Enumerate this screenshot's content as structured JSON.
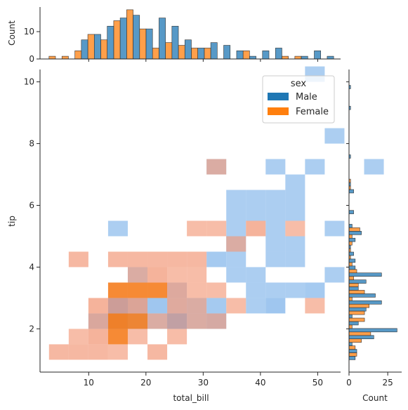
{
  "chart_data": {
    "type": "jointplot",
    "xlabel": "total_bill",
    "ylabel": "tip",
    "marg_x_ylabel": "Count",
    "marg_y_xlabel": "Count",
    "xlim": [
      1.5,
      54
    ],
    "ylim": [
      0.6,
      10.4
    ],
    "marg_x_ylim": [
      0,
      19
    ],
    "marg_y_xlim": [
      0,
      34
    ],
    "x_ticks": [
      10,
      20,
      30,
      40,
      50
    ],
    "y_ticks": [
      2,
      4,
      6,
      8,
      10
    ],
    "marg_x_ticks": [
      0,
      10
    ],
    "marg_y_ticks": [
      0,
      25
    ],
    "legend": {
      "title": "sex",
      "placement": "top-right",
      "entries": [
        "Male",
        "Female"
      ]
    },
    "colors": {
      "Male": "#1f77b4",
      "Female": "#ff7f0e",
      "Male_light": "#7fb3ea",
      "Female_light": "#f29a7a"
    },
    "joint": {
      "x_bin_start": 3.07,
      "x_bin_width": 3.44,
      "y_bin_start": 1.0,
      "y_bin_width": 0.5,
      "Male": [
        [
          2,
          2,
          0.6
        ],
        [
          3,
          2,
          0.8
        ],
        [
          4,
          2,
          0.6
        ],
        [
          5,
          2,
          0.4
        ],
        [
          6,
          2,
          0.8
        ],
        [
          7,
          2,
          0.4
        ],
        [
          8,
          2,
          0.6
        ],
        [
          3,
          3,
          0.9
        ],
        [
          4,
          3,
          0.7
        ],
        [
          5,
          3,
          0.6
        ],
        [
          6,
          3,
          0.3
        ],
        [
          7,
          3,
          0.4
        ],
        [
          8,
          3,
          0.5
        ],
        [
          10,
          3,
          0.4
        ],
        [
          11,
          3,
          0.6
        ],
        [
          6,
          4,
          0.4
        ],
        [
          10,
          4,
          0.4
        ],
        [
          11,
          4,
          0.4
        ],
        [
          12,
          4,
          0.4
        ],
        [
          13,
          4,
          0.5
        ],
        [
          4,
          5,
          0.4
        ],
        [
          9,
          5,
          0.4
        ],
        [
          10,
          5,
          0.4
        ],
        [
          14,
          5,
          0.4
        ],
        [
          8,
          6,
          0.5
        ],
        [
          9,
          6,
          0.4
        ],
        [
          11,
          6,
          0.4
        ],
        [
          12,
          6,
          0.4
        ],
        [
          9,
          7,
          0.4
        ],
        [
          11,
          7,
          0.4
        ],
        [
          12,
          7,
          0.4
        ],
        [
          3,
          8,
          0.4
        ],
        [
          9,
          8,
          0.4
        ],
        [
          11,
          8,
          0.4
        ],
        [
          14,
          8,
          0.4
        ],
        [
          9,
          9,
          0.4
        ],
        [
          10,
          9,
          0.4
        ],
        [
          11,
          9,
          0.4
        ],
        [
          12,
          9,
          0.4
        ],
        [
          9,
          10,
          0.4
        ],
        [
          10,
          10,
          0.4
        ],
        [
          11,
          10,
          0.4
        ],
        [
          12,
          10,
          0.4
        ],
        [
          12,
          11,
          0.4
        ],
        [
          8,
          12,
          0.4
        ],
        [
          11,
          12,
          0.4
        ],
        [
          13,
          12,
          0.4
        ],
        [
          16,
          12,
          0.4
        ],
        [
          14,
          14,
          0.4
        ],
        [
          13,
          18,
          0.4
        ]
      ],
      "Female": [
        [
          0,
          0,
          0.5
        ],
        [
          1,
          0,
          0.5
        ],
        [
          2,
          0,
          0.5
        ],
        [
          3,
          0,
          0.4
        ],
        [
          5,
          0,
          0.5
        ],
        [
          1,
          1,
          0.4
        ],
        [
          2,
          1,
          0.6
        ],
        [
          3,
          1,
          0.9
        ],
        [
          4,
          1,
          0.4
        ],
        [
          6,
          1,
          0.4
        ],
        [
          2,
          2,
          0.5
        ],
        [
          3,
          2,
          1.0
        ],
        [
          4,
          2,
          0.9
        ],
        [
          5,
          2,
          0.4
        ],
        [
          6,
          2,
          0.4
        ],
        [
          7,
          2,
          0.4
        ],
        [
          8,
          2,
          0.4
        ],
        [
          2,
          3,
          0.6
        ],
        [
          3,
          3,
          0.6
        ],
        [
          4,
          3,
          0.6
        ],
        [
          6,
          3,
          0.5
        ],
        [
          7,
          3,
          0.4
        ],
        [
          9,
          3,
          0.4
        ],
        [
          13,
          3,
          0.4
        ],
        [
          3,
          4,
          0.9
        ],
        [
          4,
          4,
          0.9
        ],
        [
          5,
          4,
          0.9
        ],
        [
          6,
          4,
          0.5
        ],
        [
          7,
          4,
          0.4
        ],
        [
          8,
          4,
          0.4
        ],
        [
          4,
          5,
          0.4
        ],
        [
          5,
          5,
          0.6
        ],
        [
          6,
          5,
          0.4
        ],
        [
          7,
          5,
          0.4
        ],
        [
          1,
          6,
          0.5
        ],
        [
          3,
          6,
          0.5
        ],
        [
          4,
          6,
          0.5
        ],
        [
          5,
          6,
          0.5
        ],
        [
          6,
          6,
          0.5
        ],
        [
          7,
          6,
          0.5
        ],
        [
          9,
          7,
          0.4
        ],
        [
          7,
          8,
          0.4
        ],
        [
          8,
          8,
          0.4
        ],
        [
          10,
          8,
          0.6
        ],
        [
          12,
          8,
          0.4
        ],
        [
          8,
          12,
          0.4
        ]
      ]
    },
    "marginal_x": {
      "bin_width": 2.26,
      "Male": [
        {
          "x": 3.07,
          "count": 0
        },
        {
          "x": 5.33,
          "count": 0
        },
        {
          "x": 7.59,
          "count": 7
        },
        {
          "x": 9.85,
          "count": 9
        },
        {
          "x": 12.11,
          "count": 12
        },
        {
          "x": 14.37,
          "count": 15
        },
        {
          "x": 16.63,
          "count": 16
        },
        {
          "x": 18.89,
          "count": 11
        },
        {
          "x": 21.15,
          "count": 15
        },
        {
          "x": 23.41,
          "count": 12
        },
        {
          "x": 25.67,
          "count": 7
        },
        {
          "x": 27.93,
          "count": 4
        },
        {
          "x": 30.19,
          "count": 6
        },
        {
          "x": 32.45,
          "count": 5
        },
        {
          "x": 34.71,
          "count": 3
        },
        {
          "x": 36.97,
          "count": 1
        },
        {
          "x": 39.23,
          "count": 3
        },
        {
          "x": 41.49,
          "count": 4
        },
        {
          "x": 43.75,
          "count": 0
        },
        {
          "x": 46.01,
          "count": 1
        },
        {
          "x": 48.27,
          "count": 3
        },
        {
          "x": 50.53,
          "count": 1
        }
      ],
      "Female": [
        {
          "x": 3.07,
          "count": 1
        },
        {
          "x": 5.33,
          "count": 1
        },
        {
          "x": 7.59,
          "count": 3
        },
        {
          "x": 9.85,
          "count": 9
        },
        {
          "x": 12.11,
          "count": 7
        },
        {
          "x": 14.37,
          "count": 14
        },
        {
          "x": 16.63,
          "count": 18
        },
        {
          "x": 18.89,
          "count": 11
        },
        {
          "x": 21.15,
          "count": 4
        },
        {
          "x": 23.41,
          "count": 6
        },
        {
          "x": 25.67,
          "count": 5
        },
        {
          "x": 27.93,
          "count": 4
        },
        {
          "x": 30.19,
          "count": 4
        },
        {
          "x": 32.45,
          "count": 0
        },
        {
          "x": 34.71,
          "count": 0
        },
        {
          "x": 36.97,
          "count": 3
        },
        {
          "x": 39.23,
          "count": 0
        },
        {
          "x": 41.49,
          "count": 0
        },
        {
          "x": 43.75,
          "count": 1
        },
        {
          "x": 46.01,
          "count": 1
        },
        {
          "x": 48.27,
          "count": 0
        },
        {
          "x": 50.53,
          "count": 0
        }
      ]
    },
    "marginal_y": {
      "bin_height": 0.225,
      "Male": [
        {
          "y": 1.0,
          "count": 4
        },
        {
          "y": 1.225,
          "count": 5
        },
        {
          "y": 1.45,
          "count": 2
        },
        {
          "y": 1.675,
          "count": 16
        },
        {
          "y": 1.9,
          "count": 31
        },
        {
          "y": 2.125,
          "count": 6
        },
        {
          "y": 2.35,
          "count": 2
        },
        {
          "y": 2.575,
          "count": 11
        },
        {
          "y": 2.8,
          "count": 21
        },
        {
          "y": 3.025,
          "count": 17
        },
        {
          "y": 3.25,
          "count": 6
        },
        {
          "y": 3.475,
          "count": 11
        },
        {
          "y": 3.7,
          "count": 21
        },
        {
          "y": 3.925,
          "count": 4
        },
        {
          "y": 4.15,
          "count": 4
        },
        {
          "y": 4.375,
          "count": 3
        },
        {
          "y": 4.6,
          "count": 1
        },
        {
          "y": 4.825,
          "count": 4
        },
        {
          "y": 5.05,
          "count": 8
        },
        {
          "y": 5.275,
          "count": 2
        },
        {
          "y": 5.725,
          "count": 3
        },
        {
          "y": 6.4,
          "count": 3
        },
        {
          "y": 6.625,
          "count": 1
        },
        {
          "y": 7.525,
          "count": 1
        },
        {
          "y": 9.1,
          "count": 1
        },
        {
          "y": 9.775,
          "count": 1
        }
      ],
      "Female": [
        {
          "y": 1.0,
          "count": 5
        },
        {
          "y": 1.225,
          "count": 4
        },
        {
          "y": 1.45,
          "count": 8
        },
        {
          "y": 1.675,
          "count": 14
        },
        {
          "y": 1.9,
          "count": 2
        },
        {
          "y": 2.125,
          "count": 10
        },
        {
          "y": 2.35,
          "count": 10
        },
        {
          "y": 2.575,
          "count": 13
        },
        {
          "y": 2.8,
          "count": 2
        },
        {
          "y": 3.025,
          "count": 10
        },
        {
          "y": 3.25,
          "count": 6
        },
        {
          "y": 3.475,
          "count": 3
        },
        {
          "y": 3.7,
          "count": 5
        },
        {
          "y": 3.925,
          "count": 2
        },
        {
          "y": 4.15,
          "count": 1
        },
        {
          "y": 4.375,
          "count": 1
        },
        {
          "y": 4.6,
          "count": 2
        },
        {
          "y": 4.825,
          "count": 2
        },
        {
          "y": 5.05,
          "count": 7
        },
        {
          "y": 6.4,
          "count": 1
        },
        {
          "y": 6.625,
          "count": 1
        }
      ]
    }
  }
}
